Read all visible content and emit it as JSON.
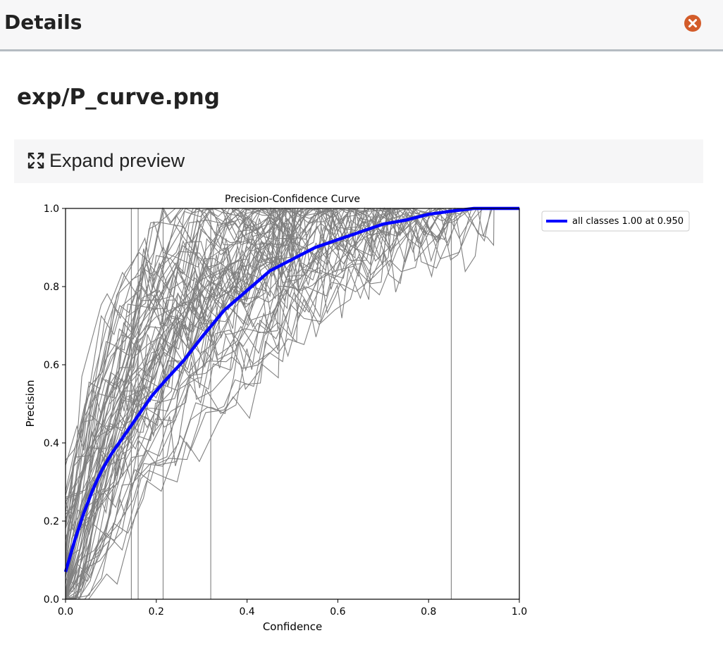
{
  "header": {
    "title": "Details",
    "close_icon": "close-circle-icon",
    "close_color": "#d35c2a"
  },
  "file": {
    "title": "exp/P_curve.png"
  },
  "preview": {
    "expand_label": "Expand preview",
    "expand_icon": "expand-arrows-icon"
  },
  "chart_data": {
    "type": "line",
    "title": "Precision-Confidence Curve",
    "xlabel": "Confidence",
    "ylabel": "Precision",
    "xlim": [
      0.0,
      1.0
    ],
    "ylim": [
      0.0,
      1.0
    ],
    "xticks": [
      "0.0",
      "0.2",
      "0.4",
      "0.6",
      "0.8",
      "1.0"
    ],
    "yticks": [
      "0.0",
      "0.2",
      "0.4",
      "0.6",
      "0.8",
      "1.0"
    ],
    "grid": false,
    "legend_position": "outside-top-right",
    "legend": [
      "all classes 1.00 at 0.950"
    ],
    "series_color_main": "#0000ff",
    "series_color_classes": "#808080",
    "series": [
      {
        "name": "all classes 1.00 at 0.950",
        "x": [
          0.0,
          0.02,
          0.04,
          0.06,
          0.08,
          0.1,
          0.13,
          0.16,
          0.19,
          0.22,
          0.26,
          0.3,
          0.35,
          0.4,
          0.45,
          0.5,
          0.55,
          0.6,
          0.65,
          0.7,
          0.75,
          0.8,
          0.85,
          0.9,
          0.95,
          1.0
        ],
        "y": [
          0.07,
          0.15,
          0.22,
          0.28,
          0.33,
          0.37,
          0.42,
          0.47,
          0.52,
          0.56,
          0.61,
          0.67,
          0.74,
          0.79,
          0.84,
          0.87,
          0.9,
          0.92,
          0.94,
          0.96,
          0.97,
          0.985,
          0.993,
          1.0,
          1.0,
          1.0
        ]
      }
    ]
  }
}
